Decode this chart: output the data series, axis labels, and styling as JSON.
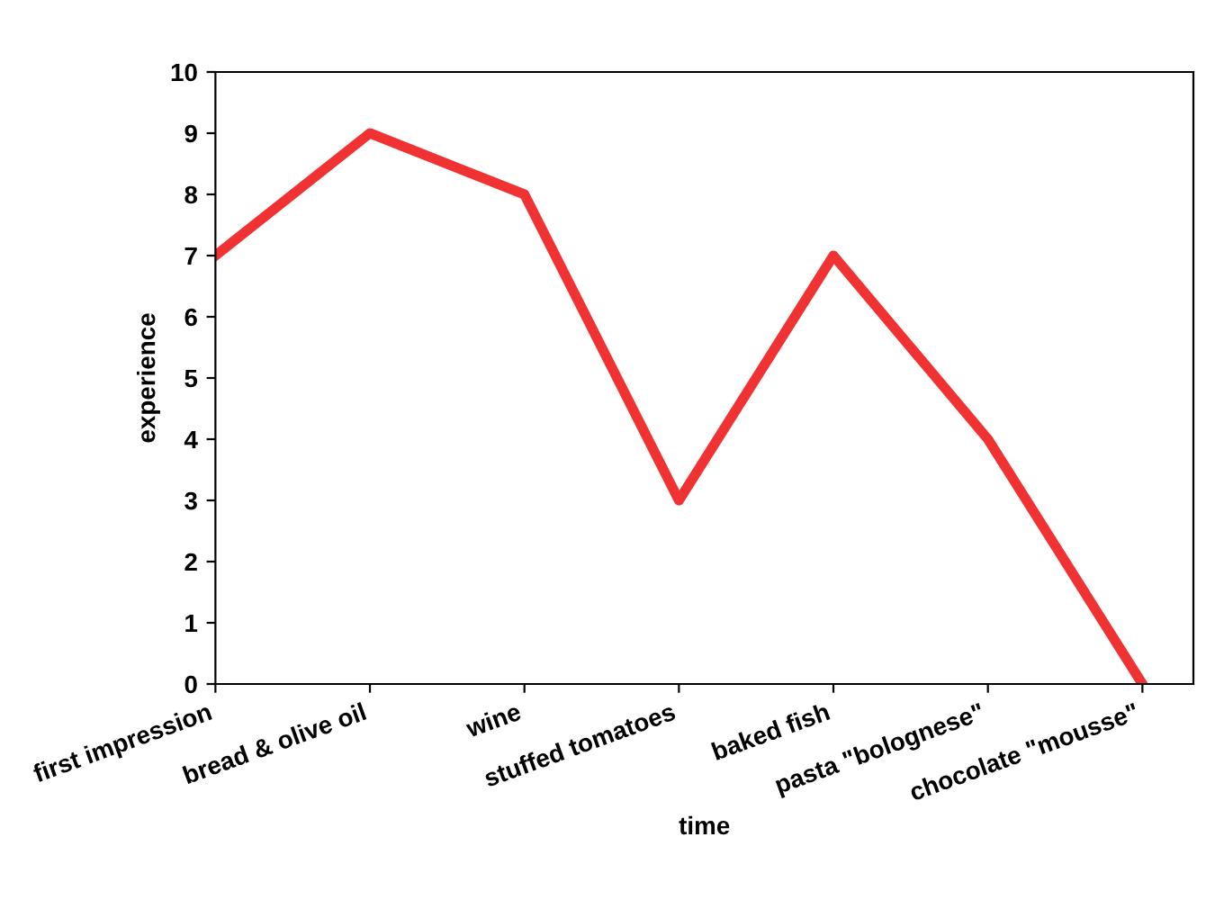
{
  "chart_data": {
    "type": "line",
    "xlabel": "time",
    "ylabel": "experience",
    "categories": [
      "first impression",
      "bread & olive oil",
      "wine",
      "stuffed tomatoes",
      "baked fish",
      "pasta \"bolognese\"",
      "chocolate \"mousse\""
    ],
    "series": [
      {
        "color": "#f03232",
        "values": [
          7,
          9,
          8,
          3,
          7,
          4,
          0
        ]
      }
    ],
    "ylim": [
      0,
      10
    ],
    "yticks": [
      0,
      1,
      2,
      3,
      4,
      5,
      6,
      7,
      8,
      9,
      10
    ],
    "grid": false,
    "legend": false,
    "marker": "none",
    "line_style": "solid"
  }
}
